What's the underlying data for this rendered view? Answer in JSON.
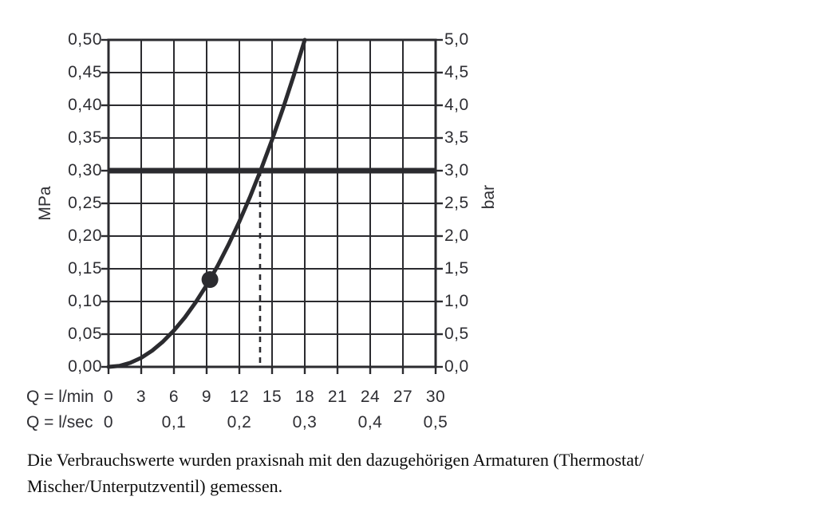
{
  "page": {
    "background_color": "#ffffff",
    "ink_color": "#2b2b2f"
  },
  "caption": {
    "line1": "Die Verbrauchswerte wurden praxisnah mit den dazugehörigen Armaturen (Thermostat/",
    "line2": "Mischer/Unterputzventil) gemessen."
  },
  "chart_data": {
    "type": "line",
    "title": "",
    "grid": true,
    "color": "#2b2b2f",
    "y_axis_left": {
      "label": "MPa",
      "min": 0,
      "max": 0.5,
      "tick_step": 0.05,
      "tick_labels_top_to_bottom": [
        "0,50",
        "0,45",
        "0,40",
        "0,35",
        "0,30",
        "0,25",
        "0,20",
        "0,15",
        "0,10",
        "0,05",
        "0,00"
      ]
    },
    "y_axis_right": {
      "label": "bar",
      "min": 0,
      "max": 5,
      "tick_step": 0.5,
      "tick_labels_top_to_bottom": [
        "5,0",
        "4,5",
        "4,0",
        "3,5",
        "3,0",
        "2,5",
        "2,0",
        "1,5",
        "1,0",
        "0,5",
        "0,0"
      ]
    },
    "x_axis_lmin": {
      "label": "Q = l/min",
      "min": 0,
      "max": 30,
      "tick_step": 3,
      "tick_labels": [
        "0",
        "3",
        "6",
        "9",
        "12",
        "15",
        "18",
        "21",
        "24",
        "27",
        "30"
      ]
    },
    "x_axis_lsec": {
      "label": "Q = l/sec",
      "tick_labels": [
        "0",
        "0,1",
        "0,2",
        "0,3",
        "0,4",
        "0,5"
      ],
      "tick_values_lmin": [
        0,
        6,
        12,
        18,
        24,
        30
      ]
    },
    "series": [
      {
        "name": "flow-pressure-curve",
        "points_lmin_mpa": [
          [
            0,
            0
          ],
          [
            1,
            0.0015
          ],
          [
            2,
            0.0062
          ],
          [
            3,
            0.0139
          ],
          [
            4,
            0.0247
          ],
          [
            5,
            0.0386
          ],
          [
            6,
            0.0556
          ],
          [
            7,
            0.0756
          ],
          [
            8,
            0.0988
          ],
          [
            9,
            0.125
          ],
          [
            10,
            0.1543
          ],
          [
            11,
            0.1867
          ],
          [
            12,
            0.2222
          ],
          [
            13,
            0.2608
          ],
          [
            14,
            0.3025
          ],
          [
            15,
            0.3472
          ],
          [
            16,
            0.3951
          ],
          [
            17,
            0.446
          ],
          [
            18,
            0.5
          ]
        ]
      }
    ],
    "marker_point": {
      "x_lmin": 9.3,
      "y_mpa": 0.1335
    },
    "reference_line_mpa": 0.3,
    "reference_line_bar": 3.0,
    "dashed_line_x_lmin": 13.9
  }
}
